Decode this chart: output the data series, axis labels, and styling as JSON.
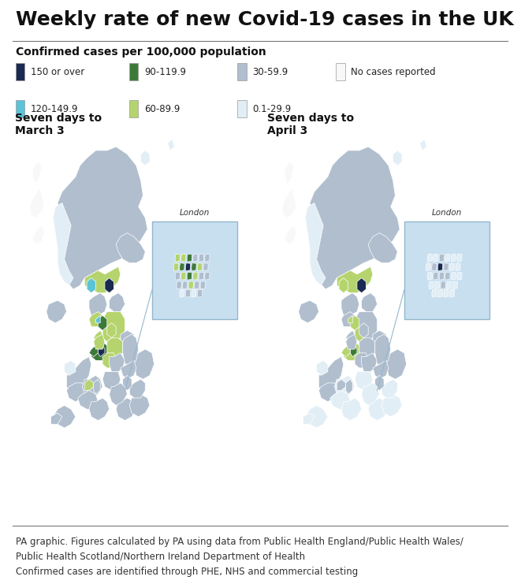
{
  "title": "Weekly rate of new Covid-19 cases in the UK",
  "subtitle": "Confirmed cases per 100,000 population",
  "map1_title": "Seven days to\nMarch 3",
  "map2_title": "Seven days to\nApril 3",
  "footer": "PA graphic. Figures calculated by PA using data from Public Health England/Public Health Wales/\nPublic Health Scotland/Northern Ireland Department of Health\nConfirmed cases are identified through PHE, NHS and commercial testing",
  "legend_items": [
    {
      "label": "150 or over",
      "color": "#1b2a52"
    },
    {
      "label": "120-149.9",
      "color": "#5bc4d8"
    },
    {
      "label": "90-119.9",
      "color": "#3d7a3a"
    },
    {
      "label": "60-89.9",
      "color": "#b5d46e"
    },
    {
      "label": "30-59.9",
      "color": "#b0bece"
    },
    {
      "label": "0.1-29.9",
      "color": "#e2eef5"
    },
    {
      "label": "No cases reported",
      "color": "#f8f8f8"
    }
  ],
  "sea_color": "#c8dff0",
  "panel_bg": "#ffffff",
  "title_fontsize": 18,
  "subtitle_fontsize": 10,
  "footer_fontsize": 8.5
}
